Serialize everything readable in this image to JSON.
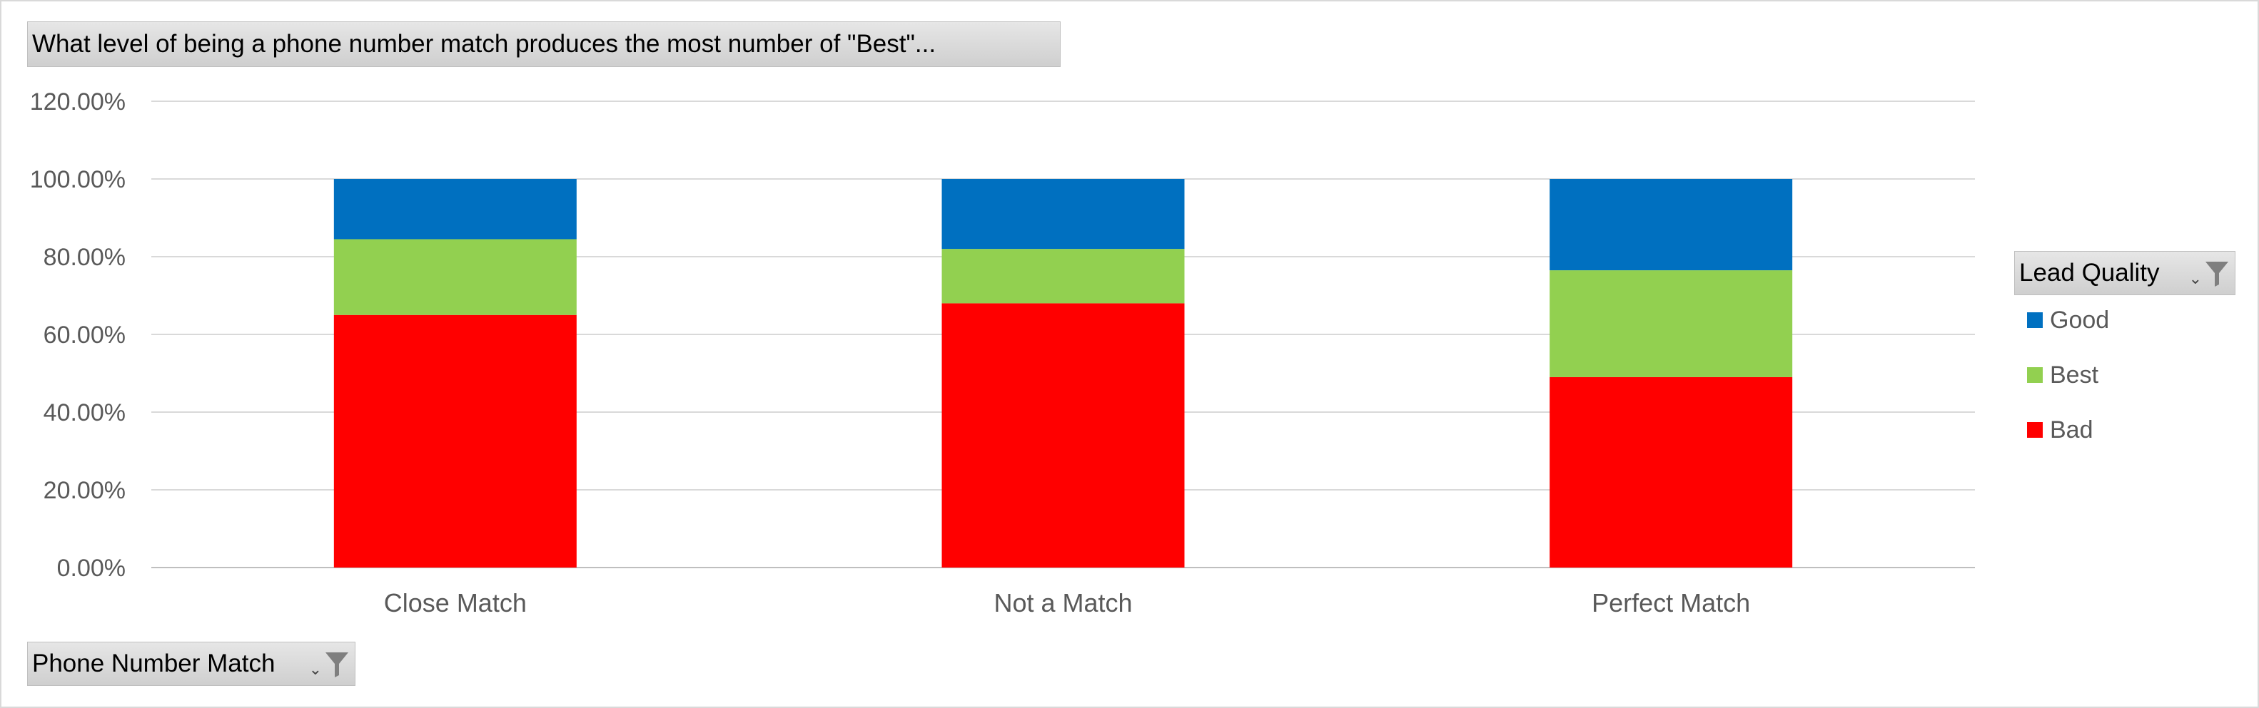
{
  "title": "What level of being a phone number match produces the most number of \"Best\"...",
  "axis_field_button": "Phone Number Match",
  "legend_field_button": "Lead Quality",
  "chart_data": {
    "type": "bar",
    "stacked": true,
    "percent_stacked": true,
    "categories": [
      "Close Match",
      "Not a Match",
      "Perfect Match"
    ],
    "series": [
      {
        "name": "Bad",
        "color": "#ff0000",
        "values": [
          0.65,
          0.68,
          0.49
        ]
      },
      {
        "name": "Best",
        "color": "#92d050",
        "values": [
          0.195,
          0.14,
          0.275
        ]
      },
      {
        "name": "Good",
        "color": "#0070c0",
        "values": [
          0.155,
          0.18,
          0.235
        ]
      }
    ],
    "yticks": [
      "0.00%",
      "20.00%",
      "40.00%",
      "60.00%",
      "80.00%",
      "100.00%",
      "120.00%"
    ],
    "ylim": [
      0,
      1.2
    ],
    "grid": true,
    "legend_position": "right",
    "legend_order": [
      "Good",
      "Best",
      "Bad"
    ]
  }
}
